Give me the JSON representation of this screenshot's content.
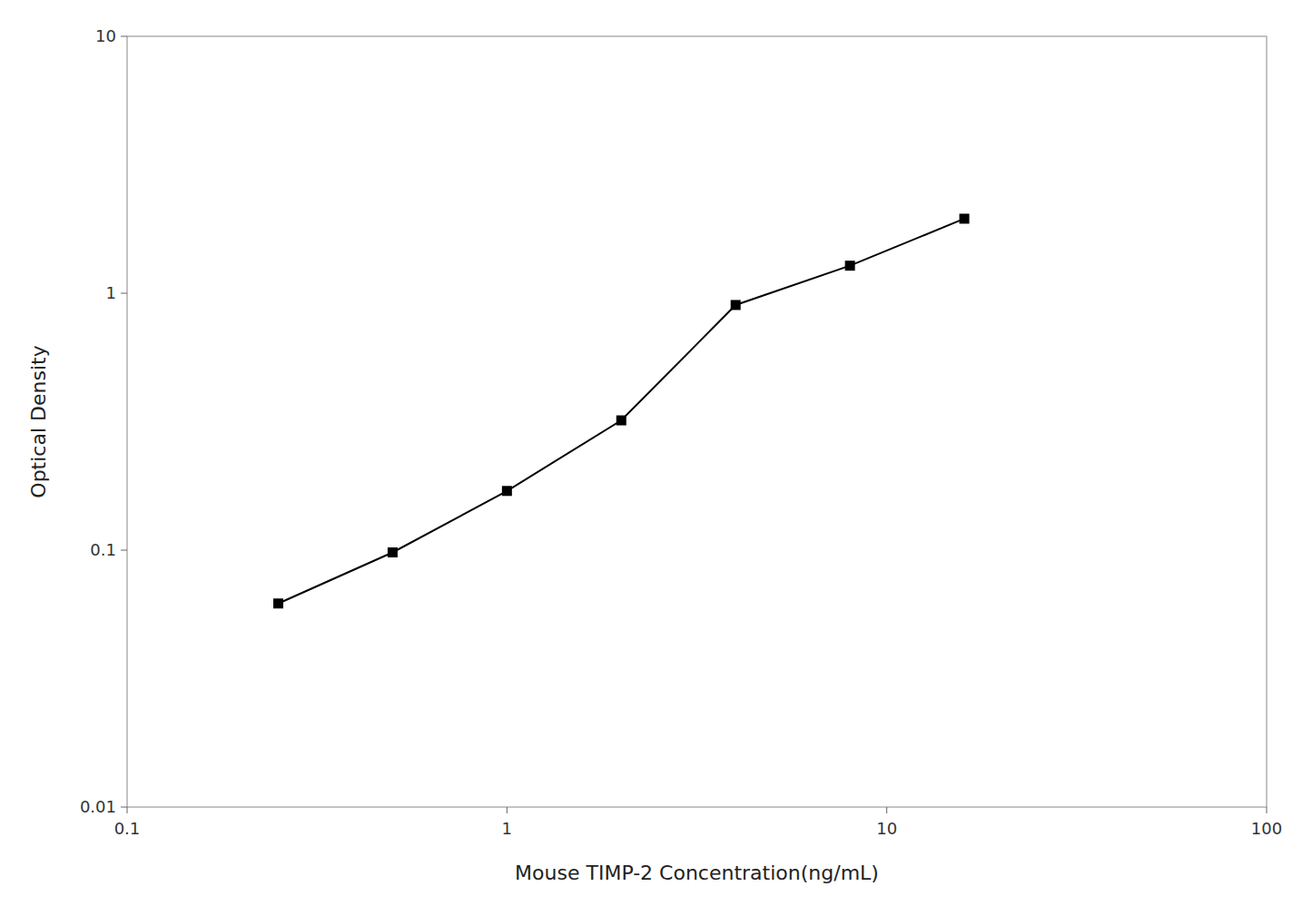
{
  "chart_data": {
    "type": "line",
    "x": [
      0.25,
      0.5,
      1.0,
      2.0,
      4.0,
      8.0,
      16.0
    ],
    "values": [
      0.062,
      0.098,
      0.17,
      0.32,
      0.9,
      1.28,
      1.95
    ],
    "xlabel": "Mouse TIMP-2 Concentration(ng/mL)",
    "ylabel": "Optical Density",
    "xlim": [
      0.1,
      100
    ],
    "ylim": [
      0.01,
      10
    ],
    "xticks": [
      0.1,
      1,
      10,
      100
    ],
    "yticks": [
      0.01,
      0.1,
      1,
      10
    ],
    "log": true,
    "grid": false,
    "color": "#000000",
    "marker": "square"
  }
}
